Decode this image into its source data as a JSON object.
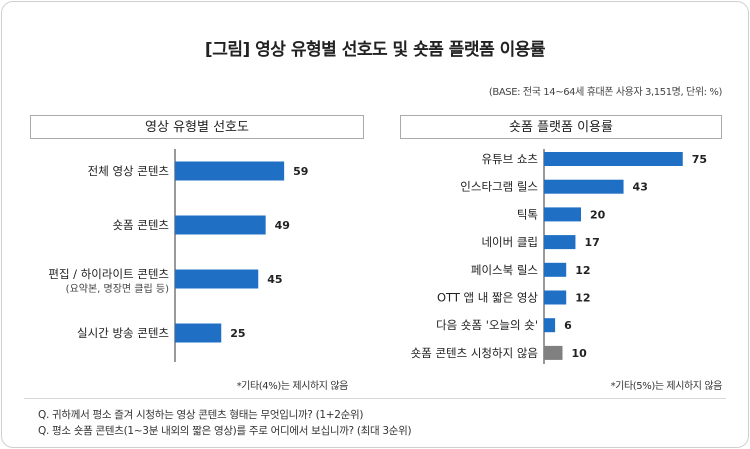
{
  "title": "[그림] 영상 유형별 선호도 및 숏폼 플랫폼 이용률",
  "base_note": "(BASE: 전국 14~64세 휴대폰 사용자 3,151명, 단위: %)",
  "colors": {
    "bar": "#1f6fc5",
    "bar_other": "#808080",
    "axis": "#333333"
  },
  "chart_data": [
    {
      "type": "bar",
      "orientation": "horizontal",
      "title": "영상 유형별 선호도",
      "categories": [
        "전체 영상 콘텐츠",
        "숏폼 콘텐츠",
        "편집 / 하이라이트 콘텐츠",
        "실시간 방송 콘텐츠"
      ],
      "category_sublabels": [
        "",
        "",
        "(요약본, 명장면 클립 등)",
        ""
      ],
      "values": [
        59,
        49,
        45,
        25
      ],
      "note": "*기타(4%)는 제시하지 않음"
    },
    {
      "type": "bar",
      "orientation": "horizontal",
      "title": "숏폼 플랫폼 이용률",
      "categories": [
        "유튜브 쇼츠",
        "인스타그램 릴스",
        "틱톡",
        "네이버 클립",
        "페이스북 릴스",
        "OTT 앱 내 짧은 영상",
        "다음 숏폼 '오늘의 숏'",
        "숏폼 콘텐츠 시청하지 않음"
      ],
      "values": [
        75,
        43,
        20,
        17,
        12,
        12,
        6,
        10
      ],
      "highlight_last": true,
      "note": "*기타(5%)는 제시하지 않음"
    }
  ],
  "questions": [
    "Q. 귀하께서 평소 즐겨 시청하는 영상 콘텐츠 형태는 무엇입니까? (1+2순위)",
    "Q. 평소 숏폼 콘텐츠(1~3분 내외의 짧은 영상)를 주로 어디에서 보십니까? (최대 3순위)"
  ]
}
